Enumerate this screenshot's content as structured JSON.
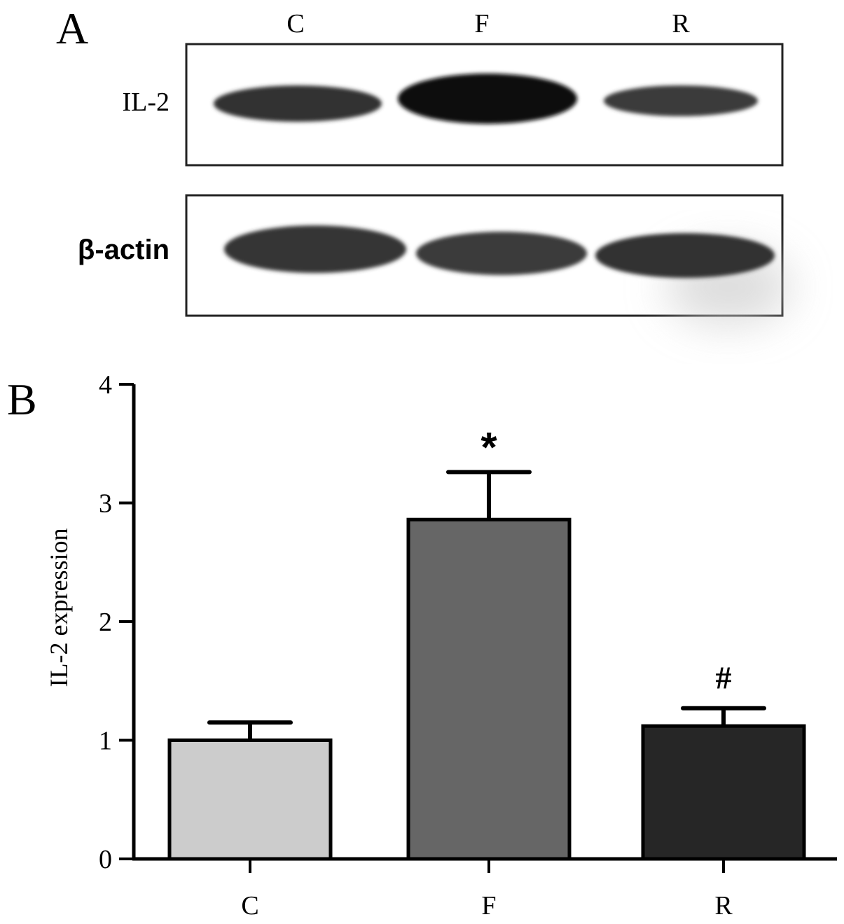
{
  "panel_a": {
    "label": "A",
    "lanes": [
      "C",
      "F",
      "R"
    ],
    "blots": [
      {
        "name": "IL-2",
        "band_intensity": [
          0.8,
          1.0,
          0.75
        ]
      },
      {
        "name": "β-actin",
        "band_intensity": [
          0.8,
          0.8,
          0.82
        ]
      }
    ]
  },
  "chart_data": {
    "type": "bar",
    "panel_label": "B",
    "categories": [
      "C",
      "F",
      "R"
    ],
    "values": [
      1.0,
      2.86,
      1.12
    ],
    "errors": [
      0.15,
      0.4,
      0.15
    ],
    "annotations": [
      "",
      "*",
      "#"
    ],
    "bar_colors": [
      "#cccccc",
      "#666666",
      "#262626"
    ],
    "ylabel": "IL-2 expression",
    "xlabel": "",
    "title": "",
    "ylim": [
      0,
      4
    ],
    "yticks": [
      0,
      1,
      2,
      3,
      4
    ],
    "grid": false,
    "legend": "none"
  }
}
